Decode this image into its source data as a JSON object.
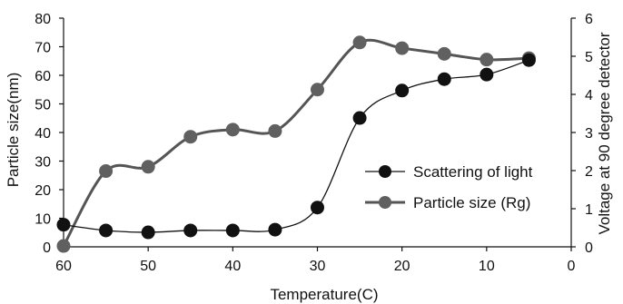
{
  "chart_data": {
    "type": "line",
    "xlabel": "Temperature(C)",
    "ylabel": "Particle size(nm)",
    "y2label": "Voltage at 90 degree detector",
    "x_reversed": true,
    "xlim": [
      0,
      60
    ],
    "ylim": [
      0,
      80
    ],
    "y2lim": [
      0,
      6
    ],
    "x_ticks": [
      60,
      50,
      40,
      30,
      20,
      10,
      0
    ],
    "y_ticks": [
      0,
      10,
      20,
      30,
      40,
      50,
      60,
      70,
      80
    ],
    "y2_ticks": [
      0,
      1,
      2,
      3,
      4,
      5,
      6
    ],
    "grid": false,
    "legend_position": "center-right",
    "series": [
      {
        "name": "Scattering of light",
        "axis": "right",
        "color": "#111111",
        "line_color": "#111111",
        "marker_color": "#111111",
        "line_width": 1.3,
        "x": [
          60,
          55,
          50,
          45,
          40,
          35,
          30,
          25,
          20,
          15,
          10,
          5
        ],
        "y": [
          0.58,
          0.43,
          0.38,
          0.43,
          0.43,
          0.45,
          1.03,
          3.38,
          4.1,
          4.4,
          4.52,
          4.9
        ]
      },
      {
        "name": "Particle size (Rg)",
        "axis": "left",
        "color": "#555555",
        "line_color": "#555555",
        "marker_color": "#606060",
        "line_width": 3,
        "x": [
          60,
          55,
          50,
          45,
          40,
          35,
          30,
          25,
          20,
          15,
          10,
          5
        ],
        "y": [
          0.3,
          26.5,
          28,
          38.5,
          41,
          40.5,
          55,
          71.5,
          69.5,
          67.5,
          65.5,
          66
        ]
      }
    ]
  }
}
